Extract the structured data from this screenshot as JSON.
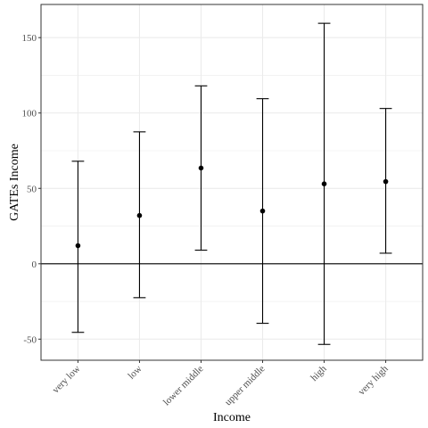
{
  "chart_data": {
    "type": "errorbar",
    "xlabel": "Income",
    "ylabel": "GATEs Income",
    "categories": [
      "very low",
      "low",
      "lower middle",
      "upper middle",
      "high",
      "very high"
    ],
    "series": [
      {
        "estimate": [
          12,
          32,
          63.5,
          35,
          53,
          54.5
        ],
        "lower": [
          -45.5,
          -22.5,
          9,
          -39.5,
          -53.5,
          7
        ],
        "upper": [
          68,
          87.5,
          118,
          109.5,
          159.5,
          103
        ]
      }
    ],
    "ylim": [
      -64,
      172
    ],
    "yticks": [
      -50,
      0,
      50,
      100,
      150
    ],
    "reference_line": 0,
    "grid": true,
    "theme": "bw",
    "colors": {
      "points": "#000000",
      "grid": "#ebebeb",
      "panel_border": "#333333",
      "tick_text": "#4d4d4d"
    }
  }
}
